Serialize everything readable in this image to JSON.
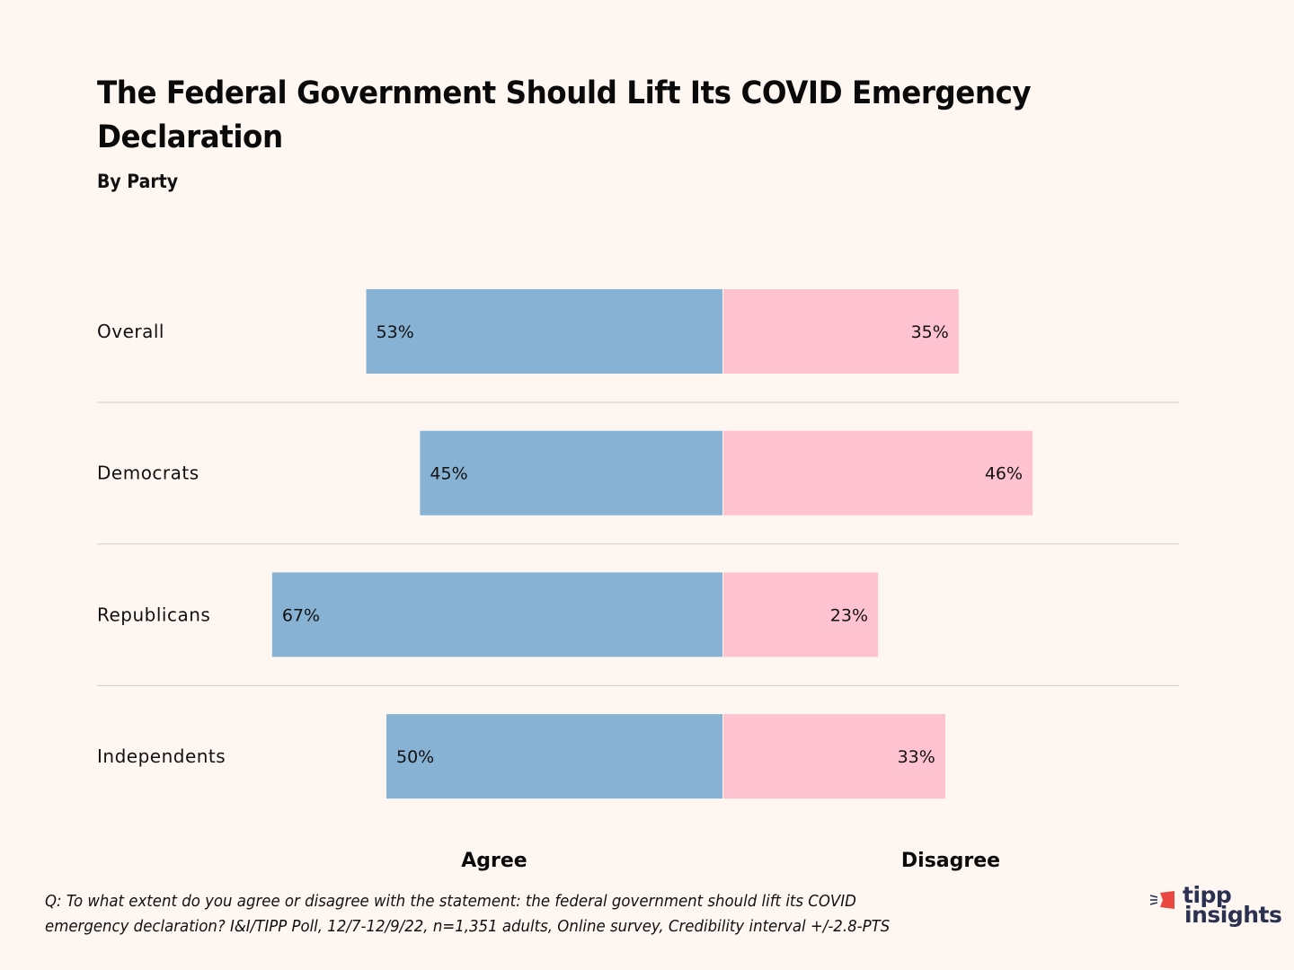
{
  "chart_data": {
    "type": "bar",
    "orientation": "horizontal-diverging",
    "title": "The Federal Government Should Lift Its COVID Emergency Declaration",
    "subtitle": "By Party",
    "categories": [
      "Overall",
      "Democrats",
      "Republicans",
      "Independents"
    ],
    "series": [
      {
        "name": "Agree",
        "values": [
          53,
          45,
          67,
          50
        ],
        "labels": [
          "53%",
          "45%",
          "67%",
          "50%"
        ],
        "color": "#87b2d3",
        "direction": "left"
      },
      {
        "name": "Disagree",
        "values": [
          35,
          46,
          23,
          33
        ],
        "labels": [
          "35%",
          "46%",
          "23%",
          "33%"
        ],
        "color": "#ffc2d1",
        "direction": "right"
      }
    ],
    "xlabel": "",
    "ylabel": "",
    "unit": "%",
    "xlim": [
      0,
      100
    ],
    "grid": false,
    "row_separators": true,
    "legend_placement": "bottom"
  },
  "footnote": {
    "line1": "Q: To what extent do you agree or disagree with the statement: the federal government should lift its COVID",
    "line2": "emergency declaration? I&I/TIPP Poll, 12/7-12/9/22, n=1,351 adults, Online survey, Credibility interval +/-2.8-PTS"
  },
  "logo": {
    "line1": "tipp",
    "line2": "insights",
    "accent_color": "#e9473f",
    "text_color": "#2b3150"
  },
  "colors": {
    "background": "#fdf6f1",
    "separator": "#d6d3d1"
  }
}
